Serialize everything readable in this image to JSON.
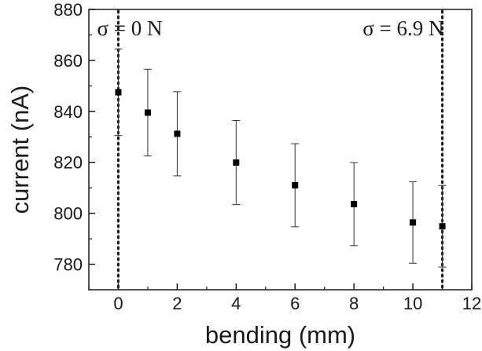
{
  "chart_data": {
    "type": "scatter",
    "title": "",
    "xlabel": "bending (mm)",
    "ylabel": "current (nA)",
    "xlim": [
      -1,
      12
    ],
    "ylim": [
      770,
      880
    ],
    "xticks": [
      0,
      2,
      4,
      6,
      8,
      10,
      12
    ],
    "yticks": [
      780,
      800,
      820,
      840,
      860,
      880
    ],
    "grid": false,
    "legend": "none",
    "marker": "square",
    "color": "#000000",
    "points": [
      {
        "x": 0,
        "y": 847.5,
        "err": 17
      },
      {
        "x": 1,
        "y": 839.5,
        "err": 17
      },
      {
        "x": 2,
        "y": 831.2,
        "err": 16.5
      },
      {
        "x": 4,
        "y": 819.9,
        "err": 16.5
      },
      {
        "x": 6,
        "y": 811.0,
        "err": 16.3
      },
      {
        "x": 8,
        "y": 803.6,
        "err": 16.3
      },
      {
        "x": 10,
        "y": 796.4,
        "err": 16
      },
      {
        "x": 11,
        "y": 794.9,
        "err": 16
      }
    ],
    "reference_lines": [
      {
        "x": 0,
        "label": "σ = 0 N",
        "label_side": "right"
      },
      {
        "x": 11,
        "label": "σ = 6.9 N",
        "label_side": "left"
      }
    ]
  }
}
